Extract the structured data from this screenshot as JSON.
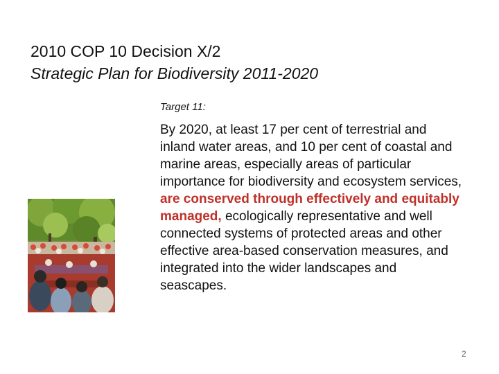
{
  "slide": {
    "title_line1": "2010 COP 10 Decision X/2",
    "title_line2": "Strategic Plan for Biodiversity 2011-2020",
    "target_label": "Target 11:",
    "body": {
      "text_before": "By 2020, at least 17 per cent of terrestrial and inland water areas, and 10 per cent of coastal and marine areas, especially areas of particular importance for biodiversity and ecosystem services,",
      "highlight": "are conserved through effectively and equitably managed,",
      "text_after": "ecologically representative and well connected systems of protected areas and other effective area-based conservation measures, and integrated into the wider landscapes and seascapes."
    },
    "page_number": "2",
    "colors": {
      "highlight": "#c0302a",
      "page_number": "#6b6b6b"
    },
    "image": {
      "icon": "community-meeting-photo"
    }
  }
}
